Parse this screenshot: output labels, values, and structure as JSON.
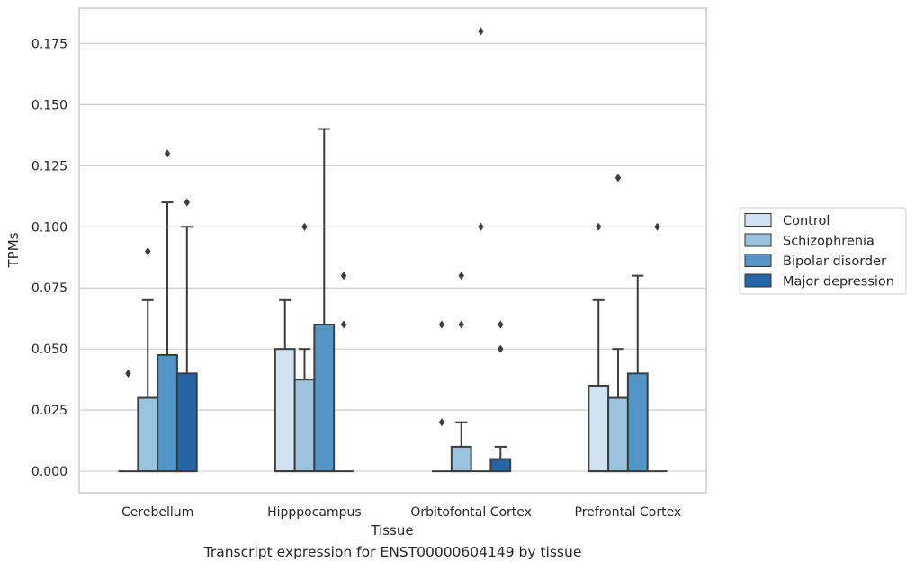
{
  "caption": "Transcript expression for ENST00000604149 by tissue",
  "chart_data": {
    "type": "box",
    "xlabel": "Tissue",
    "ylabel": "TPMs",
    "ylim": [
      -0.0088,
      0.1895
    ],
    "yticks": [
      0.0,
      0.025,
      0.05,
      0.075,
      0.1,
      0.125,
      0.15,
      0.175
    ],
    "ytick_labels": [
      "0.000",
      "0.025",
      "0.050",
      "0.075",
      "0.100",
      "0.125",
      "0.150",
      "0.175"
    ],
    "grid": "horizontal",
    "legend_position": "right",
    "categories": [
      "Cerebellum",
      "Hipppocampus",
      "Orbitofontal Cortex",
      "Prefrontal Cortex"
    ],
    "series": [
      {
        "name": "Control",
        "color": "#d0e1f2",
        "boxes": [
          {
            "q1": 0,
            "median": 0,
            "q3": 0,
            "whisker_low": 0,
            "whisker_high": 0,
            "outliers": [
              0.04
            ]
          },
          {
            "q1": 0,
            "median": 0,
            "q3": 0.05,
            "whisker_low": 0,
            "whisker_high": 0.07,
            "outliers": []
          },
          {
            "q1": 0,
            "median": 0,
            "q3": 0,
            "whisker_low": 0,
            "whisker_high": 0,
            "outliers": [
              0.02,
              0.06
            ]
          },
          {
            "q1": 0,
            "median": 0,
            "q3": 0.035,
            "whisker_low": 0,
            "whisker_high": 0.07,
            "outliers": [
              0.1
            ]
          }
        ]
      },
      {
        "name": "Schizophrenia",
        "color": "#9ac3dd",
        "boxes": [
          {
            "q1": 0,
            "median": 0,
            "q3": 0.03,
            "whisker_low": 0,
            "whisker_high": 0.07,
            "outliers": [
              0.09
            ]
          },
          {
            "q1": 0,
            "median": 0,
            "q3": 0.0375,
            "whisker_low": 0,
            "whisker_high": 0.05,
            "outliers": [
              0.1
            ]
          },
          {
            "q1": 0,
            "median": 0,
            "q3": 0.01,
            "whisker_low": 0,
            "whisker_high": 0.02,
            "outliers": [
              0.06,
              0.08
            ]
          },
          {
            "q1": 0,
            "median": 0,
            "q3": 0.03,
            "whisker_low": 0,
            "whisker_high": 0.05,
            "outliers": [
              0.12
            ]
          }
        ]
      },
      {
        "name": "Bipolar disorder",
        "color": "#5296c7",
        "boxes": [
          {
            "q1": 0,
            "median": 0,
            "q3": 0.0475,
            "whisker_low": 0,
            "whisker_high": 0.11,
            "outliers": [
              0.13
            ]
          },
          {
            "q1": 0,
            "median": 0,
            "q3": 0.06,
            "whisker_low": 0,
            "whisker_high": 0.14,
            "outliers": []
          },
          {
            "q1": 0,
            "median": 0,
            "q3": 0,
            "whisker_low": 0,
            "whisker_high": 0,
            "outliers": [
              0.1,
              0.18
            ]
          },
          {
            "q1": 0,
            "median": 0,
            "q3": 0.04,
            "whisker_low": 0,
            "whisker_high": 0.08,
            "outliers": []
          }
        ]
      },
      {
        "name": "Major depression",
        "color": "#2465a6",
        "boxes": [
          {
            "q1": 0,
            "median": 0,
            "q3": 0.04,
            "whisker_low": 0,
            "whisker_high": 0.1,
            "outliers": [
              0.11
            ]
          },
          {
            "q1": 0,
            "median": 0,
            "q3": 0,
            "whisker_low": 0,
            "whisker_high": 0,
            "outliers": [
              0.06,
              0.08
            ]
          },
          {
            "q1": 0,
            "median": 0,
            "q3": 0.005,
            "whisker_low": 0,
            "whisker_high": 0.01,
            "outliers": [
              0.05,
              0.06
            ]
          },
          {
            "q1": 0,
            "median": 0,
            "q3": 0,
            "whisker_low": 0,
            "whisker_high": 0,
            "outliers": [
              0.1
            ]
          }
        ]
      }
    ]
  }
}
